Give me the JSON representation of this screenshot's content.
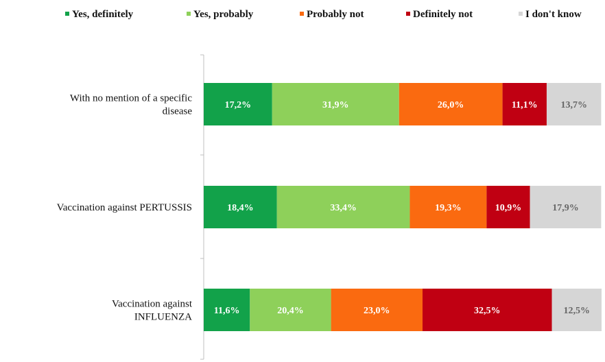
{
  "chart_data": {
    "type": "bar",
    "orientation": "horizontal",
    "stacked": true,
    "percent_stacked": true,
    "legend_position": "top",
    "grid": false,
    "xlim": [
      0,
      100
    ],
    "categories": [
      [
        "With no mention of a specific",
        "disease"
      ],
      [
        "Vaccination against PERTUSSIS"
      ],
      [
        "Vaccination against",
        "INFLUENZA"
      ]
    ],
    "series": [
      {
        "name": "Yes, definitely",
        "color": "#12a24a",
        "labels": [
          "17,2%",
          "18,4%",
          "11,6%"
        ],
        "values": [
          17.2,
          18.4,
          11.6
        ],
        "label_color": "#ffffff"
      },
      {
        "name": "Yes, probably",
        "color": "#8ed05a",
        "labels": [
          "31,9%",
          "33,4%",
          "20,4%"
        ],
        "values": [
          31.9,
          33.4,
          20.4
        ],
        "label_color": "#ffffff"
      },
      {
        "name": "Probably not",
        "color": "#fa6a10",
        "labels": [
          "26,0%",
          "19,3%",
          "23,0%"
        ],
        "values": [
          26.0,
          19.3,
          23.0
        ],
        "label_color": "#ffffff"
      },
      {
        "name": "Definitely not",
        "color": "#c00012",
        "labels": [
          "11,1%",
          "10,9%",
          "32,5%"
        ],
        "values": [
          11.1,
          10.9,
          32.5
        ],
        "label_color": "#ffffff"
      },
      {
        "name": "I don't know",
        "color": "#d6d6d6",
        "labels": [
          "13,7%",
          "17,9%",
          "12,5%"
        ],
        "values": [
          13.7,
          17.9,
          12.5
        ],
        "label_color": "#666666"
      }
    ]
  }
}
